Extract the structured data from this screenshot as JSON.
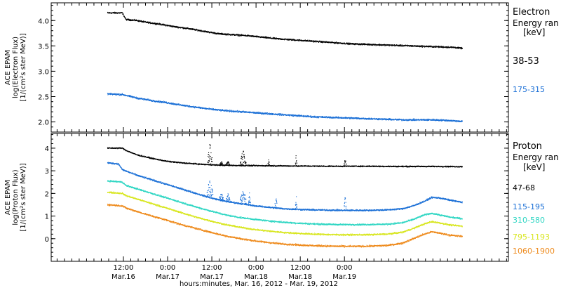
{
  "chart_data": [
    {
      "type": "scatter",
      "panel": "electron",
      "ylabel": [
        "ACE EPAM",
        "log(Electron Flux)",
        "[1/(cm²s ster MeV)]"
      ],
      "ylim": [
        1.8,
        4.35
      ],
      "yticks": [
        "2.0",
        "2.5",
        "3.0",
        "3.5",
        "4.0"
      ],
      "ytick_values": [
        2.0,
        2.5,
        3.0,
        3.5,
        4.0
      ],
      "legend_title": [
        "Electron",
        "Energy ran",
        "[keV]"
      ],
      "series": [
        {
          "name": "38-53",
          "color": "#000000",
          "noise": 0.018,
          "points": [
            [
              0,
              4.15
            ],
            [
              3,
              4.15
            ],
            [
              4,
              4.15
            ],
            [
              5,
              4.02
            ],
            [
              8,
              4.0
            ],
            [
              10,
              3.97
            ],
            [
              14,
              3.93
            ],
            [
              18,
              3.88
            ],
            [
              22,
              3.84
            ],
            [
              26,
              3.79
            ],
            [
              30,
              3.74
            ],
            [
              34,
              3.72
            ],
            [
              38,
              3.7
            ],
            [
              42,
              3.67
            ],
            [
              46,
              3.64
            ],
            [
              50,
              3.62
            ],
            [
              54,
              3.6
            ],
            [
              58,
              3.58
            ],
            [
              62,
              3.56
            ],
            [
              66,
              3.54
            ],
            [
              70,
              3.53
            ],
            [
              74,
              3.52
            ],
            [
              78,
              3.51
            ],
            [
              82,
              3.5
            ],
            [
              86,
              3.49
            ],
            [
              90,
              3.48
            ],
            [
              94,
              3.47
            ],
            [
              96.3,
              3.45
            ]
          ]
        },
        {
          "name": "175-315",
          "color": "#1a6fd6",
          "noise": 0.02,
          "points": [
            [
              0,
              2.55
            ],
            [
              4,
              2.54
            ],
            [
              8,
              2.47
            ],
            [
              12,
              2.42
            ],
            [
              16,
              2.38
            ],
            [
              20,
              2.33
            ],
            [
              24,
              2.29
            ],
            [
              28,
              2.25
            ],
            [
              32,
              2.22
            ],
            [
              36,
              2.2
            ],
            [
              40,
              2.18
            ],
            [
              44,
              2.16
            ],
            [
              48,
              2.14
            ],
            [
              52,
              2.12
            ],
            [
              56,
              2.1
            ],
            [
              60,
              2.09
            ],
            [
              64,
              2.08
            ],
            [
              68,
              2.07
            ],
            [
              72,
              2.06
            ],
            [
              76,
              2.05
            ],
            [
              80,
              2.04
            ],
            [
              84,
              2.04
            ],
            [
              88,
              2.04
            ],
            [
              92,
              2.03
            ],
            [
              96.3,
              2.01
            ]
          ]
        }
      ]
    },
    {
      "type": "scatter",
      "panel": "proton",
      "ylabel": [
        "ACE EPAM",
        "log(Proton Flux)",
        "[1/(cm²s ster MeV)]"
      ],
      "ylim": [
        -1.0,
        4.65
      ],
      "yticks": [
        "0",
        "1",
        "2",
        "3",
        "4"
      ],
      "ytick_values": [
        0,
        1,
        2,
        3,
        4
      ],
      "legend_title": [
        "Proton",
        "Energy ran",
        "[keV]"
      ],
      "series": [
        {
          "name": "47-68",
          "color": "#000000",
          "noise": 0.03,
          "points": [
            [
              0,
              4.0
            ],
            [
              4,
              4.0
            ],
            [
              5,
              3.9
            ],
            [
              8,
              3.7
            ],
            [
              12,
              3.55
            ],
            [
              16,
              3.42
            ],
            [
              20,
              3.35
            ],
            [
              26,
              3.28
            ],
            [
              30,
              3.25
            ],
            [
              36,
              3.23
            ],
            [
              44,
              3.22
            ],
            [
              52,
              3.21
            ],
            [
              60,
              3.2
            ],
            [
              70,
              3.2
            ],
            [
              80,
              3.19
            ],
            [
              90,
              3.19
            ],
            [
              96.3,
              3.18
            ]
          ]
        },
        {
          "name": "115-195",
          "color": "#1a6fd6",
          "noise": 0.04,
          "points": [
            [
              0,
              3.35
            ],
            [
              3,
              3.3
            ],
            [
              4,
              3.05
            ],
            [
              8,
              2.8
            ],
            [
              12,
              2.6
            ],
            [
              16,
              2.4
            ],
            [
              20,
              2.2
            ],
            [
              24,
              2.0
            ],
            [
              28,
              1.8
            ],
            [
              32,
              1.65
            ],
            [
              36,
              1.55
            ],
            [
              40,
              1.45
            ],
            [
              44,
              1.38
            ],
            [
              48,
              1.32
            ],
            [
              52,
              1.29
            ],
            [
              56,
              1.27
            ],
            [
              60,
              1.26
            ],
            [
              64,
              1.25
            ],
            [
              70,
              1.25
            ],
            [
              76,
              1.27
            ],
            [
              80,
              1.32
            ],
            [
              83,
              1.45
            ],
            [
              86,
              1.65
            ],
            [
              88,
              1.82
            ],
            [
              90,
              1.8
            ],
            [
              93,
              1.7
            ],
            [
              96.3,
              1.6
            ]
          ]
        },
        {
          "name": "310-580",
          "color": "#2fd6c3",
          "noise": 0.04,
          "points": [
            [
              0,
              2.55
            ],
            [
              4,
              2.5
            ],
            [
              5,
              2.35
            ],
            [
              8,
              2.2
            ],
            [
              12,
              2.0
            ],
            [
              16,
              1.8
            ],
            [
              20,
              1.6
            ],
            [
              24,
              1.4
            ],
            [
              28,
              1.22
            ],
            [
              32,
              1.05
            ],
            [
              36,
              0.93
            ],
            [
              40,
              0.85
            ],
            [
              44,
              0.78
            ],
            [
              48,
              0.72
            ],
            [
              52,
              0.68
            ],
            [
              56,
              0.65
            ],
            [
              60,
              0.63
            ],
            [
              64,
              0.62
            ],
            [
              70,
              0.62
            ],
            [
              76,
              0.64
            ],
            [
              80,
              0.7
            ],
            [
              83,
              0.85
            ],
            [
              86,
              1.05
            ],
            [
              88,
              1.12
            ],
            [
              90,
              1.05
            ],
            [
              93,
              0.95
            ],
            [
              96.3,
              0.88
            ]
          ]
        },
        {
          "name": "795-1193",
          "color": "#d8e61f",
          "noise": 0.04,
          "points": [
            [
              0,
              2.05
            ],
            [
              4,
              2.0
            ],
            [
              5,
              1.9
            ],
            [
              8,
              1.75
            ],
            [
              12,
              1.55
            ],
            [
              16,
              1.35
            ],
            [
              20,
              1.15
            ],
            [
              24,
              0.95
            ],
            [
              28,
              0.78
            ],
            [
              32,
              0.62
            ],
            [
              36,
              0.5
            ],
            [
              40,
              0.4
            ],
            [
              44,
              0.33
            ],
            [
              48,
              0.27
            ],
            [
              52,
              0.23
            ],
            [
              56,
              0.2
            ],
            [
              60,
              0.18
            ],
            [
              64,
              0.17
            ],
            [
              70,
              0.17
            ],
            [
              76,
              0.2
            ],
            [
              80,
              0.28
            ],
            [
              83,
              0.45
            ],
            [
              86,
              0.65
            ],
            [
              88,
              0.75
            ],
            [
              90,
              0.7
            ],
            [
              93,
              0.6
            ],
            [
              96.3,
              0.55
            ]
          ]
        },
        {
          "name": "1060-1900",
          "color": "#ee8a1c",
          "noise": 0.045,
          "points": [
            [
              0,
              1.5
            ],
            [
              4,
              1.45
            ],
            [
              5,
              1.35
            ],
            [
              8,
              1.2
            ],
            [
              12,
              1.0
            ],
            [
              16,
              0.82
            ],
            [
              20,
              0.62
            ],
            [
              24,
              0.45
            ],
            [
              28,
              0.28
            ],
            [
              32,
              0.12
            ],
            [
              36,
              0.0
            ],
            [
              40,
              -0.1
            ],
            [
              44,
              -0.18
            ],
            [
              48,
              -0.24
            ],
            [
              52,
              -0.28
            ],
            [
              56,
              -0.31
            ],
            [
              60,
              -0.33
            ],
            [
              64,
              -0.34
            ],
            [
              70,
              -0.34
            ],
            [
              76,
              -0.3
            ],
            [
              80,
              -0.2
            ],
            [
              83,
              0.0
            ],
            [
              86,
              0.2
            ],
            [
              88,
              0.3
            ],
            [
              90,
              0.25
            ],
            [
              93,
              0.15
            ],
            [
              96.3,
              0.1
            ]
          ]
        }
      ],
      "spikes": [
        {
          "series": 0,
          "x": [
            27.2,
            28.4
          ],
          "peak": 4.5
        },
        {
          "series": 0,
          "x": [
            30.5,
            31.2
          ],
          "peak": 3.5
        },
        {
          "series": 0,
          "x": [
            32.2,
            33.1
          ],
          "peak": 3.45
        },
        {
          "series": 0,
          "x": [
            36.0,
            37.6
          ],
          "peak": 3.95
        },
        {
          "series": 0,
          "x": [
            43.5,
            44.0
          ],
          "peak": 3.6
        },
        {
          "series": 0,
          "x": [
            51.0,
            51.4
          ],
          "peak": 3.75
        },
        {
          "series": 0,
          "x": [
            64.2,
            64.8
          ],
          "peak": 3.6
        },
        {
          "series": 1,
          "x": [
            27.0,
            28.6
          ],
          "peak": 2.7
        },
        {
          "series": 1,
          "x": [
            30.4,
            31.4
          ],
          "peak": 2.1
        },
        {
          "series": 1,
          "x": [
            32.2,
            33.2
          ],
          "peak": 2.0
        },
        {
          "series": 1,
          "x": [
            36.0,
            37.6
          ],
          "peak": 2.25
        },
        {
          "series": 1,
          "x": [
            38.2,
            38.8
          ],
          "peak": 2.05
        },
        {
          "series": 1,
          "x": [
            45.4,
            46.0
          ],
          "peak": 1.95
        },
        {
          "series": 1,
          "x": [
            51.0,
            51.4
          ],
          "peak": 2.0
        },
        {
          "series": 1,
          "x": [
            64.2,
            64.8
          ],
          "peak": 1.9
        }
      ]
    }
  ],
  "xaxis": {
    "range_hours": [
      -7.6,
      116.5
    ],
    "ticks": [
      {
        "hour": 12,
        "time": "12:00",
        "date": "Mar.16"
      },
      {
        "hour": 24,
        "time": "0:00",
        "date": "Mar.17"
      },
      {
        "hour": 36,
        "time": "12:00",
        "date": "Mar.17"
      },
      {
        "hour": 48,
        "time": "0:00",
        "date": "Mar.18"
      },
      {
        "hour": 60,
        "time": "12:00",
        "date": "Mar.18"
      },
      {
        "hour": 72,
        "time": "0:00",
        "date": "Mar.19"
      }
    ],
    "label": "hours:minutes, Mar. 16, 2012 - Mar. 19, 2012",
    "data_start_hour": 7.6
  }
}
